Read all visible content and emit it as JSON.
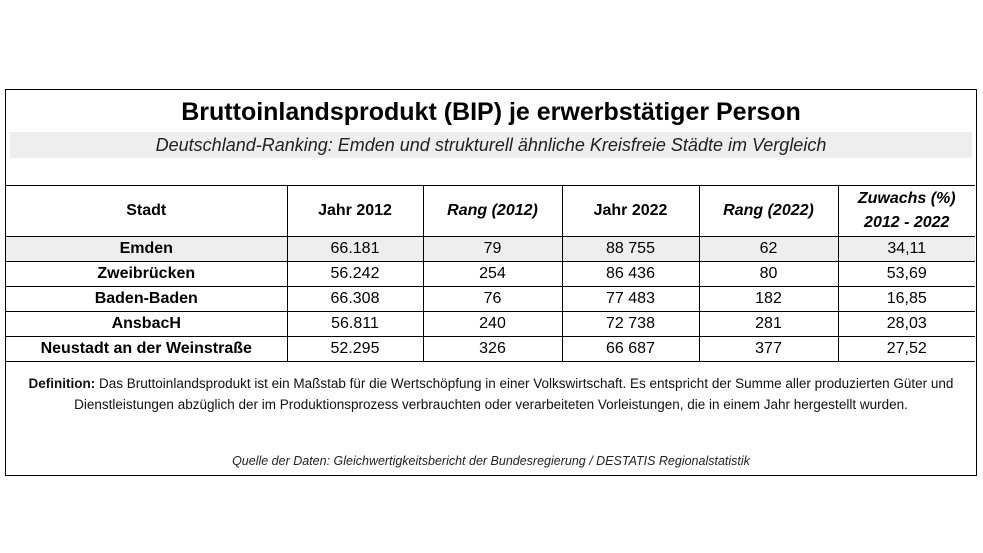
{
  "title": "Bruttoinlandsprodukt (BIP) je erwerbstätiger Person",
  "subtitle": "Deutschland-Ranking: Emden und strukturell ähnliche Kreisfreie Städte im Vergleich",
  "table": {
    "headers": {
      "stadt": "Stadt",
      "jahr2012": "Jahr 2012",
      "rang2012": "Rang (2012)",
      "jahr2022": "Jahr 2022",
      "rang2022": "Rang (2022)",
      "zuwachs_line1": "Zuwachs (%)",
      "zuwachs_line2": "2012 - 2022"
    },
    "rows": [
      {
        "stadt": "Emden",
        "jahr2012": "66.181",
        "rang2012": "79",
        "jahr2022": "88 755",
        "rang2022": "62",
        "zuwachs": "34,11"
      },
      {
        "stadt": "Zweibrücken",
        "jahr2012": "56.242",
        "rang2012": "254",
        "jahr2022": "86 436",
        "rang2022": "80",
        "zuwachs": "53,69"
      },
      {
        "stadt": "Baden-Baden",
        "jahr2012": "66.308",
        "rang2012": "76",
        "jahr2022": "77 483",
        "rang2022": "182",
        "zuwachs": "16,85"
      },
      {
        "stadt": "AnsbacH",
        "jahr2012": "56.811",
        "rang2012": "240",
        "jahr2022": "72 738",
        "rang2022": "281",
        "zuwachs": "28,03"
      },
      {
        "stadt": "Neustadt an der Weinstraße",
        "jahr2012": "52.295",
        "rang2012": "326",
        "jahr2022": "66 687",
        "rang2022": "377",
        "zuwachs": "27,52"
      }
    ]
  },
  "definition": {
    "label": "Definition:",
    "text": " Das Bruttoinlandsprodukt ist ein Maßstab für die Wertschöpfung in einer Volkswirtschaft. Es  entspricht der Summe aller produzierten Güter und Dienstleistungen abzüglich der im Produktionsprozess verbrauchten oder verarbeiteten Vorleistungen, die in einem Jahr hergestellt wurden."
  },
  "source": "Quelle der Daten: Gleichwertigkeitsbericht der Bundesregierung / DESTATIS Regionalstatistik"
}
